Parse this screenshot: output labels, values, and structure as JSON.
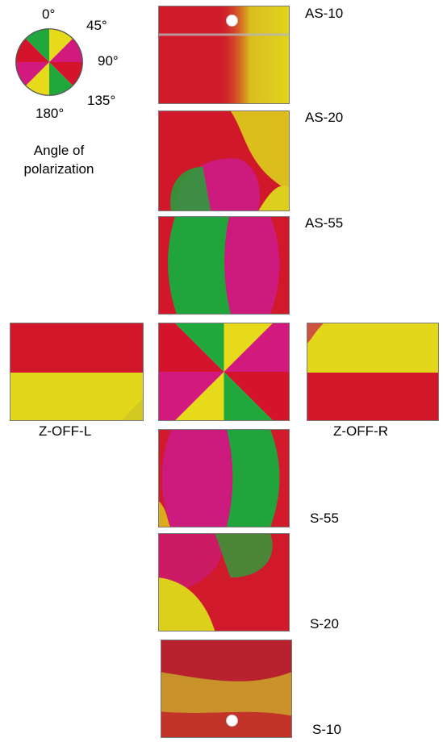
{
  "legend": {
    "title_line1": "Angle of",
    "title_line2": "polarization",
    "angles": {
      "a0": "0°",
      "a45": "45°",
      "a90": "90°",
      "a135": "135°",
      "a180": "180°"
    }
  },
  "panels": {
    "as10": "AS-10",
    "as20": "AS-20",
    "as55": "AS-55",
    "zoff_l": "Z-OFF-L",
    "zoff_r": "Z-OFF-R",
    "s55": "S-55",
    "s20": "S-20",
    "s10": "S-10"
  },
  "colors": {
    "red": "#d4142a",
    "yellow": "#e6da1a",
    "green": "#21a83c",
    "magenta": "#d21a7e"
  }
}
